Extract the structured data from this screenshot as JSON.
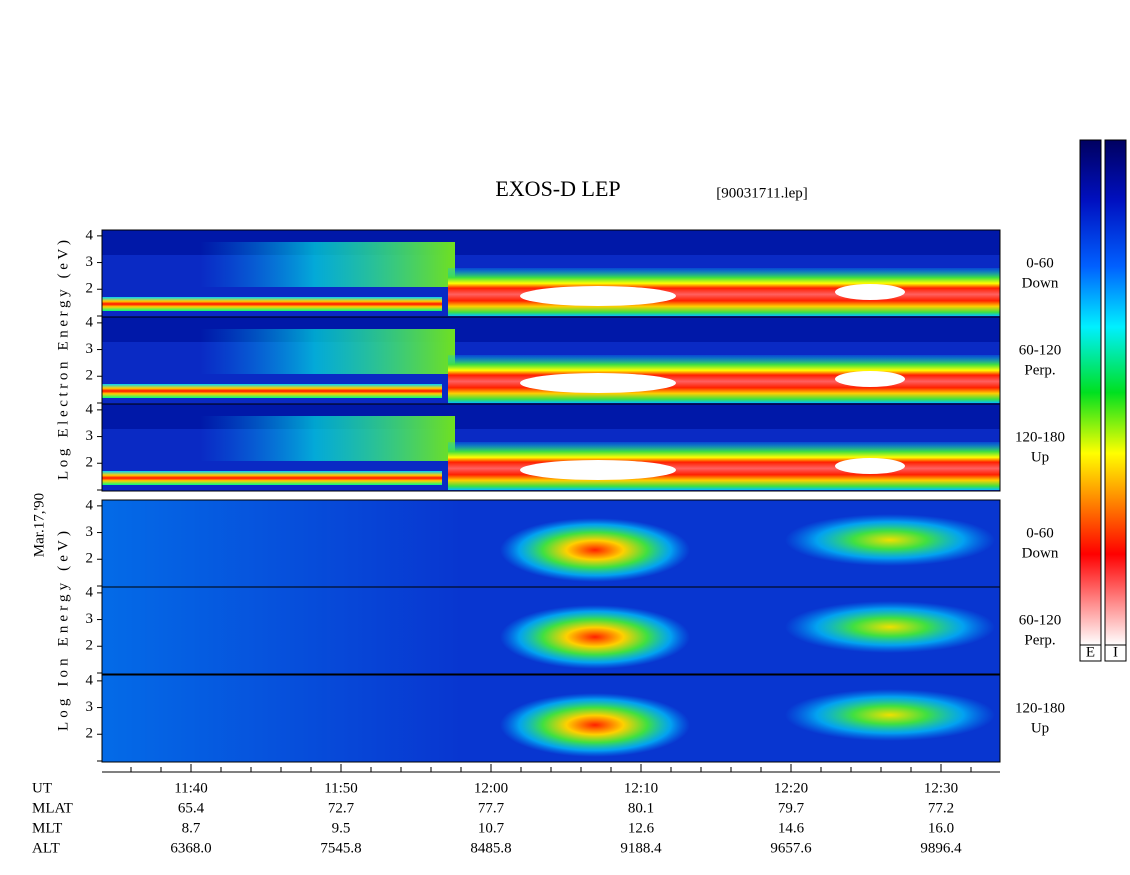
{
  "title": "EXOS-D LEP",
  "file": "[90031711.lep]",
  "electron_axis_label": "Log Electron Energy (eV)",
  "date": "Mar.17,'90",
  "ion_axis_label": "Log Ion Energy (eV)",
  "panel_ylim": [
    0.96,
    4.22
  ],
  "panel_yticks": [
    2,
    3,
    4
  ],
  "panels": [
    {
      "angle": "0-60",
      "direction": "Down"
    },
    {
      "angle": "60-120",
      "direction": "Perp."
    },
    {
      "angle": "120-180",
      "direction": "Up"
    }
  ],
  "colorbar_labels": [
    "E",
    "I"
  ],
  "ephemeris": {
    "row_labels": [
      "UT",
      "MLAT",
      "MLT",
      "ALT"
    ],
    "columns": [
      {
        "UT": "11:40",
        "MLAT": "65.4",
        "MLT": "8.7",
        "ALT": "6368.0"
      },
      {
        "UT": "11:50",
        "MLAT": "72.7",
        "MLT": "9.5",
        "ALT": "7545.8"
      },
      {
        "UT": "12:00",
        "MLAT": "77.7",
        "MLT": "10.7",
        "ALT": "8485.8"
      },
      {
        "UT": "12:10",
        "MLAT": "80.1",
        "MLT": "12.6",
        "ALT": "9188.4"
      },
      {
        "UT": "12:20",
        "MLAT": "79.7",
        "MLT": "14.6",
        "ALT": "9657.6"
      },
      {
        "UT": "12:30",
        "MLAT": "77.2",
        "MLT": "16.0",
        "ALT": "9896.4"
      }
    ]
  }
}
